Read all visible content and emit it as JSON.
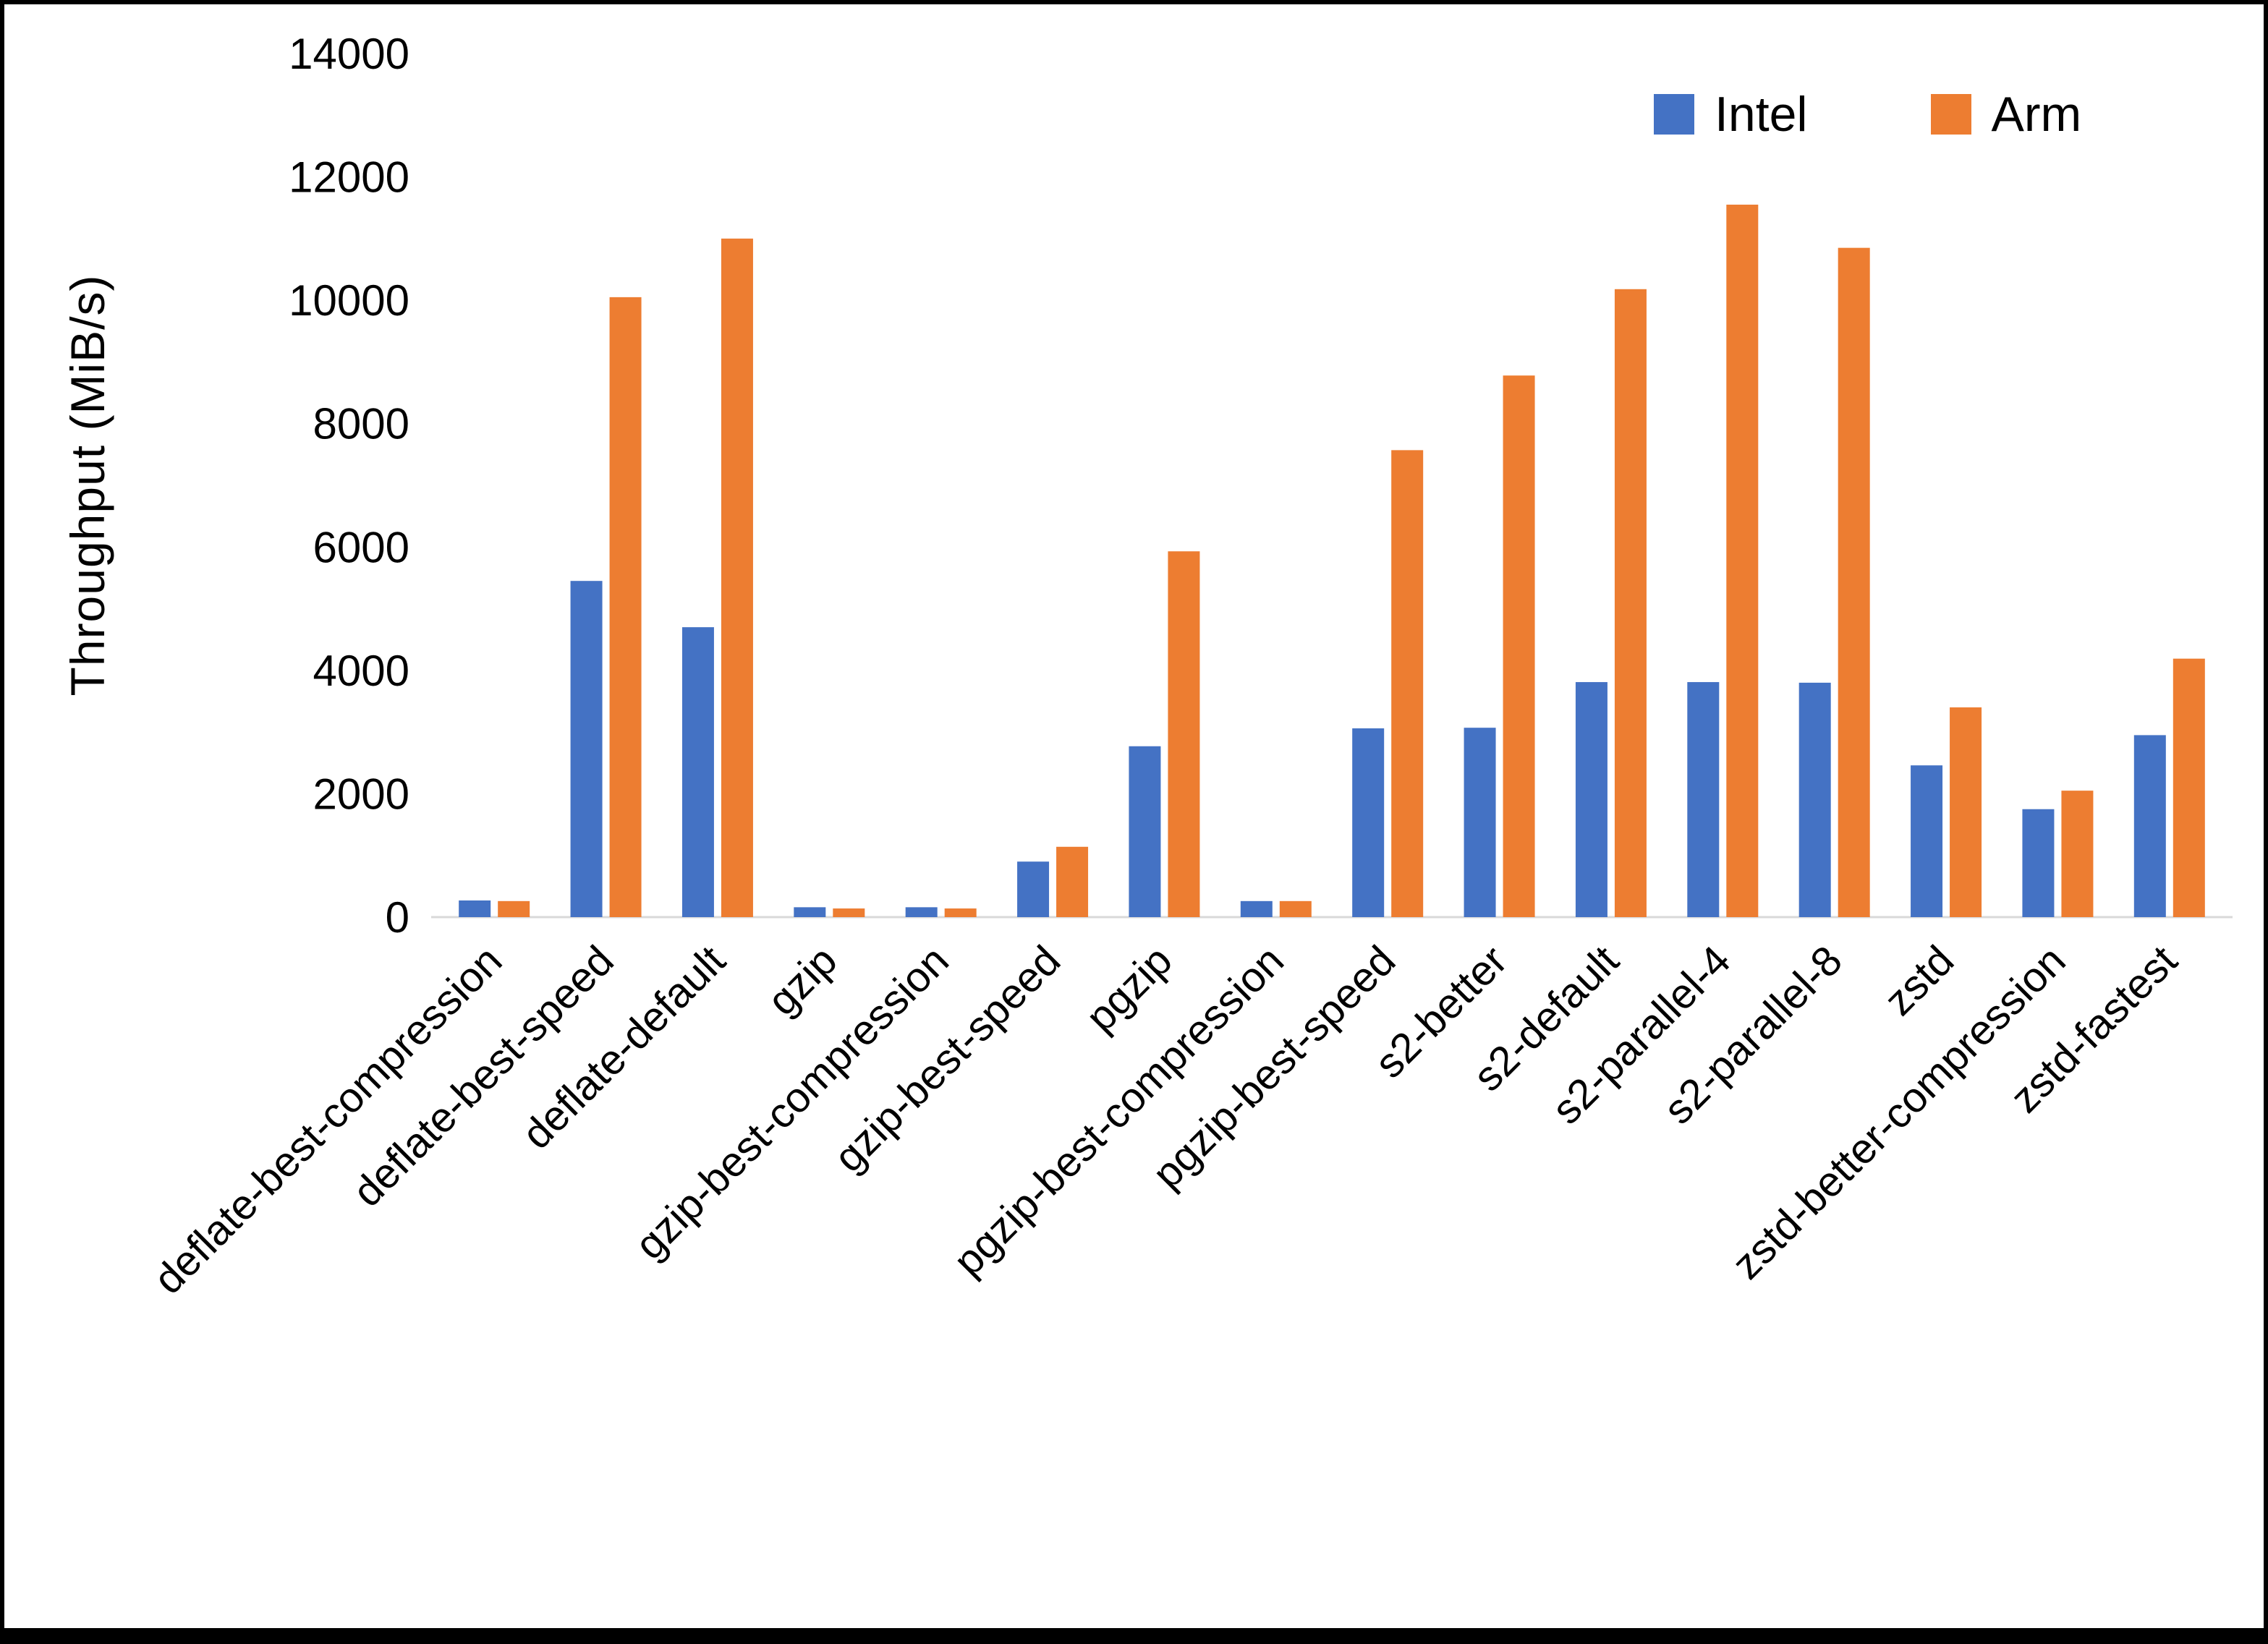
{
  "chart_data": {
    "type": "bar",
    "title": "",
    "xlabel": "",
    "ylabel": "Throughput (MiB/s)",
    "ylim": [
      0,
      14000
    ],
    "ytick_step": 2000,
    "grid": false,
    "legend_position": "top-right",
    "axis_line_color": "#d9d9d9",
    "categories": [
      "deflate-best-compression",
      "deflate-best-speed",
      "deflate-default",
      "gzip",
      "gzip-best-compression",
      "gzip-best-speed",
      "pgzip",
      "pgzip-best-compression",
      "pgzip-best-speed",
      "s2-better",
      "s2-default",
      "s2-parallel-4",
      "s2-parallel-8",
      "zstd",
      "zstd-better-compression",
      "zstd-fastest"
    ],
    "series": [
      {
        "name": "Intel",
        "color": "#4472C4",
        "values": [
          270,
          5450,
          4700,
          160,
          160,
          900,
          2770,
          260,
          3060,
          3070,
          3810,
          3810,
          3800,
          2460,
          1750,
          2950
        ]
      },
      {
        "name": "Arm",
        "color": "#ED7D31",
        "values": [
          260,
          10050,
          11000,
          140,
          140,
          1140,
          5930,
          260,
          7570,
          8780,
          10180,
          11550,
          10850,
          3400,
          2050,
          4190
        ]
      }
    ]
  }
}
